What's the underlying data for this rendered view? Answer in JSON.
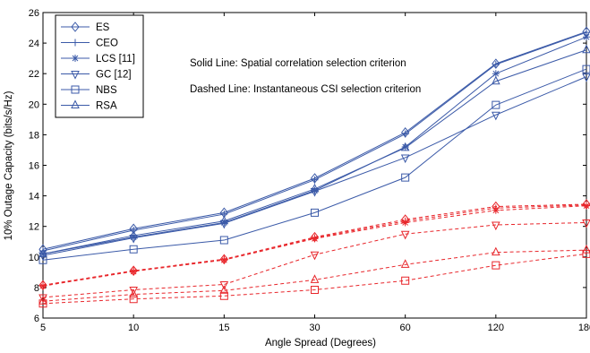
{
  "chart_data": {
    "type": "line",
    "title": "",
    "xlabel": "Angle Spread (Degrees)",
    "ylabel": "10% Outage Capacity (bits/s/Hz)",
    "x": [
      "5",
      "10",
      "15",
      "30",
      "60",
      "120",
      "180"
    ],
    "ylim": [
      6,
      26
    ],
    "yticks": [
      6,
      8,
      10,
      12,
      14,
      16,
      18,
      20,
      22,
      24,
      26
    ],
    "grid": false,
    "legend_placement": "top-left",
    "legend": [
      {
        "name": "ES",
        "marker": "diamond"
      },
      {
        "name": "CEO",
        "marker": "plus"
      },
      {
        "name": "LCS [11]",
        "marker": "asterisk"
      },
      {
        "name": "GC [12]",
        "marker": "triangle-down"
      },
      {
        "name": "NBS",
        "marker": "square"
      },
      {
        "name": "RSA",
        "marker": "triangle-up"
      }
    ],
    "annotations": [
      "Solid Line: Spatial correlation selection criterion",
      "Dashed Line: Instantaneous CSI selection criterion"
    ],
    "colors": {
      "solid": "#3b5aa8",
      "dashed": "#e8262b"
    },
    "series": [
      {
        "name": "ES",
        "line": "solid",
        "marker": "diamond",
        "values": [
          10.5,
          11.85,
          12.9,
          15.15,
          18.15,
          22.65,
          24.75
        ]
      },
      {
        "name": "CEO",
        "line": "solid",
        "marker": "plus",
        "values": [
          10.4,
          11.75,
          12.8,
          15.05,
          18.05,
          22.6,
          24.7
        ]
      },
      {
        "name": "LCS [11]",
        "line": "solid",
        "marker": "asterisk",
        "values": [
          10.2,
          11.3,
          12.25,
          14.35,
          17.2,
          22.0,
          24.4
        ]
      },
      {
        "name": "GC [12]",
        "line": "solid",
        "marker": "triangle-down",
        "values": [
          10.1,
          11.25,
          12.2,
          14.3,
          16.5,
          19.3,
          21.8
        ]
      },
      {
        "name": "NBS",
        "line": "solid",
        "marker": "square",
        "values": [
          9.8,
          10.5,
          11.1,
          12.9,
          15.2,
          19.95,
          22.3
        ]
      },
      {
        "name": "RSA",
        "line": "solid",
        "marker": "triangle-up",
        "values": [
          10.2,
          11.4,
          12.35,
          14.45,
          17.15,
          21.5,
          23.55
        ]
      },
      {
        "name": "ES",
        "line": "dashed",
        "marker": "diamond",
        "values": [
          8.15,
          9.1,
          9.85,
          11.3,
          12.45,
          13.3,
          13.45
        ]
      },
      {
        "name": "CEO",
        "line": "dashed",
        "marker": "plus",
        "values": [
          8.15,
          9.1,
          9.85,
          11.25,
          12.35,
          13.2,
          13.4
        ]
      },
      {
        "name": "LCS [11]",
        "line": "dashed",
        "marker": "asterisk",
        "values": [
          8.1,
          9.05,
          9.8,
          11.2,
          12.25,
          13.05,
          13.35
        ]
      },
      {
        "name": "GC [12]",
        "line": "dashed",
        "marker": "triangle-down",
        "values": [
          7.35,
          7.85,
          8.2,
          10.15,
          11.5,
          12.1,
          12.25
        ]
      },
      {
        "name": "NBS",
        "line": "dashed",
        "marker": "square",
        "values": [
          6.95,
          7.25,
          7.45,
          7.85,
          8.45,
          9.45,
          10.2
        ]
      },
      {
        "name": "RSA",
        "line": "dashed",
        "marker": "triangle-up",
        "values": [
          7.1,
          7.55,
          7.8,
          8.5,
          9.5,
          10.3,
          10.45
        ]
      }
    ]
  }
}
